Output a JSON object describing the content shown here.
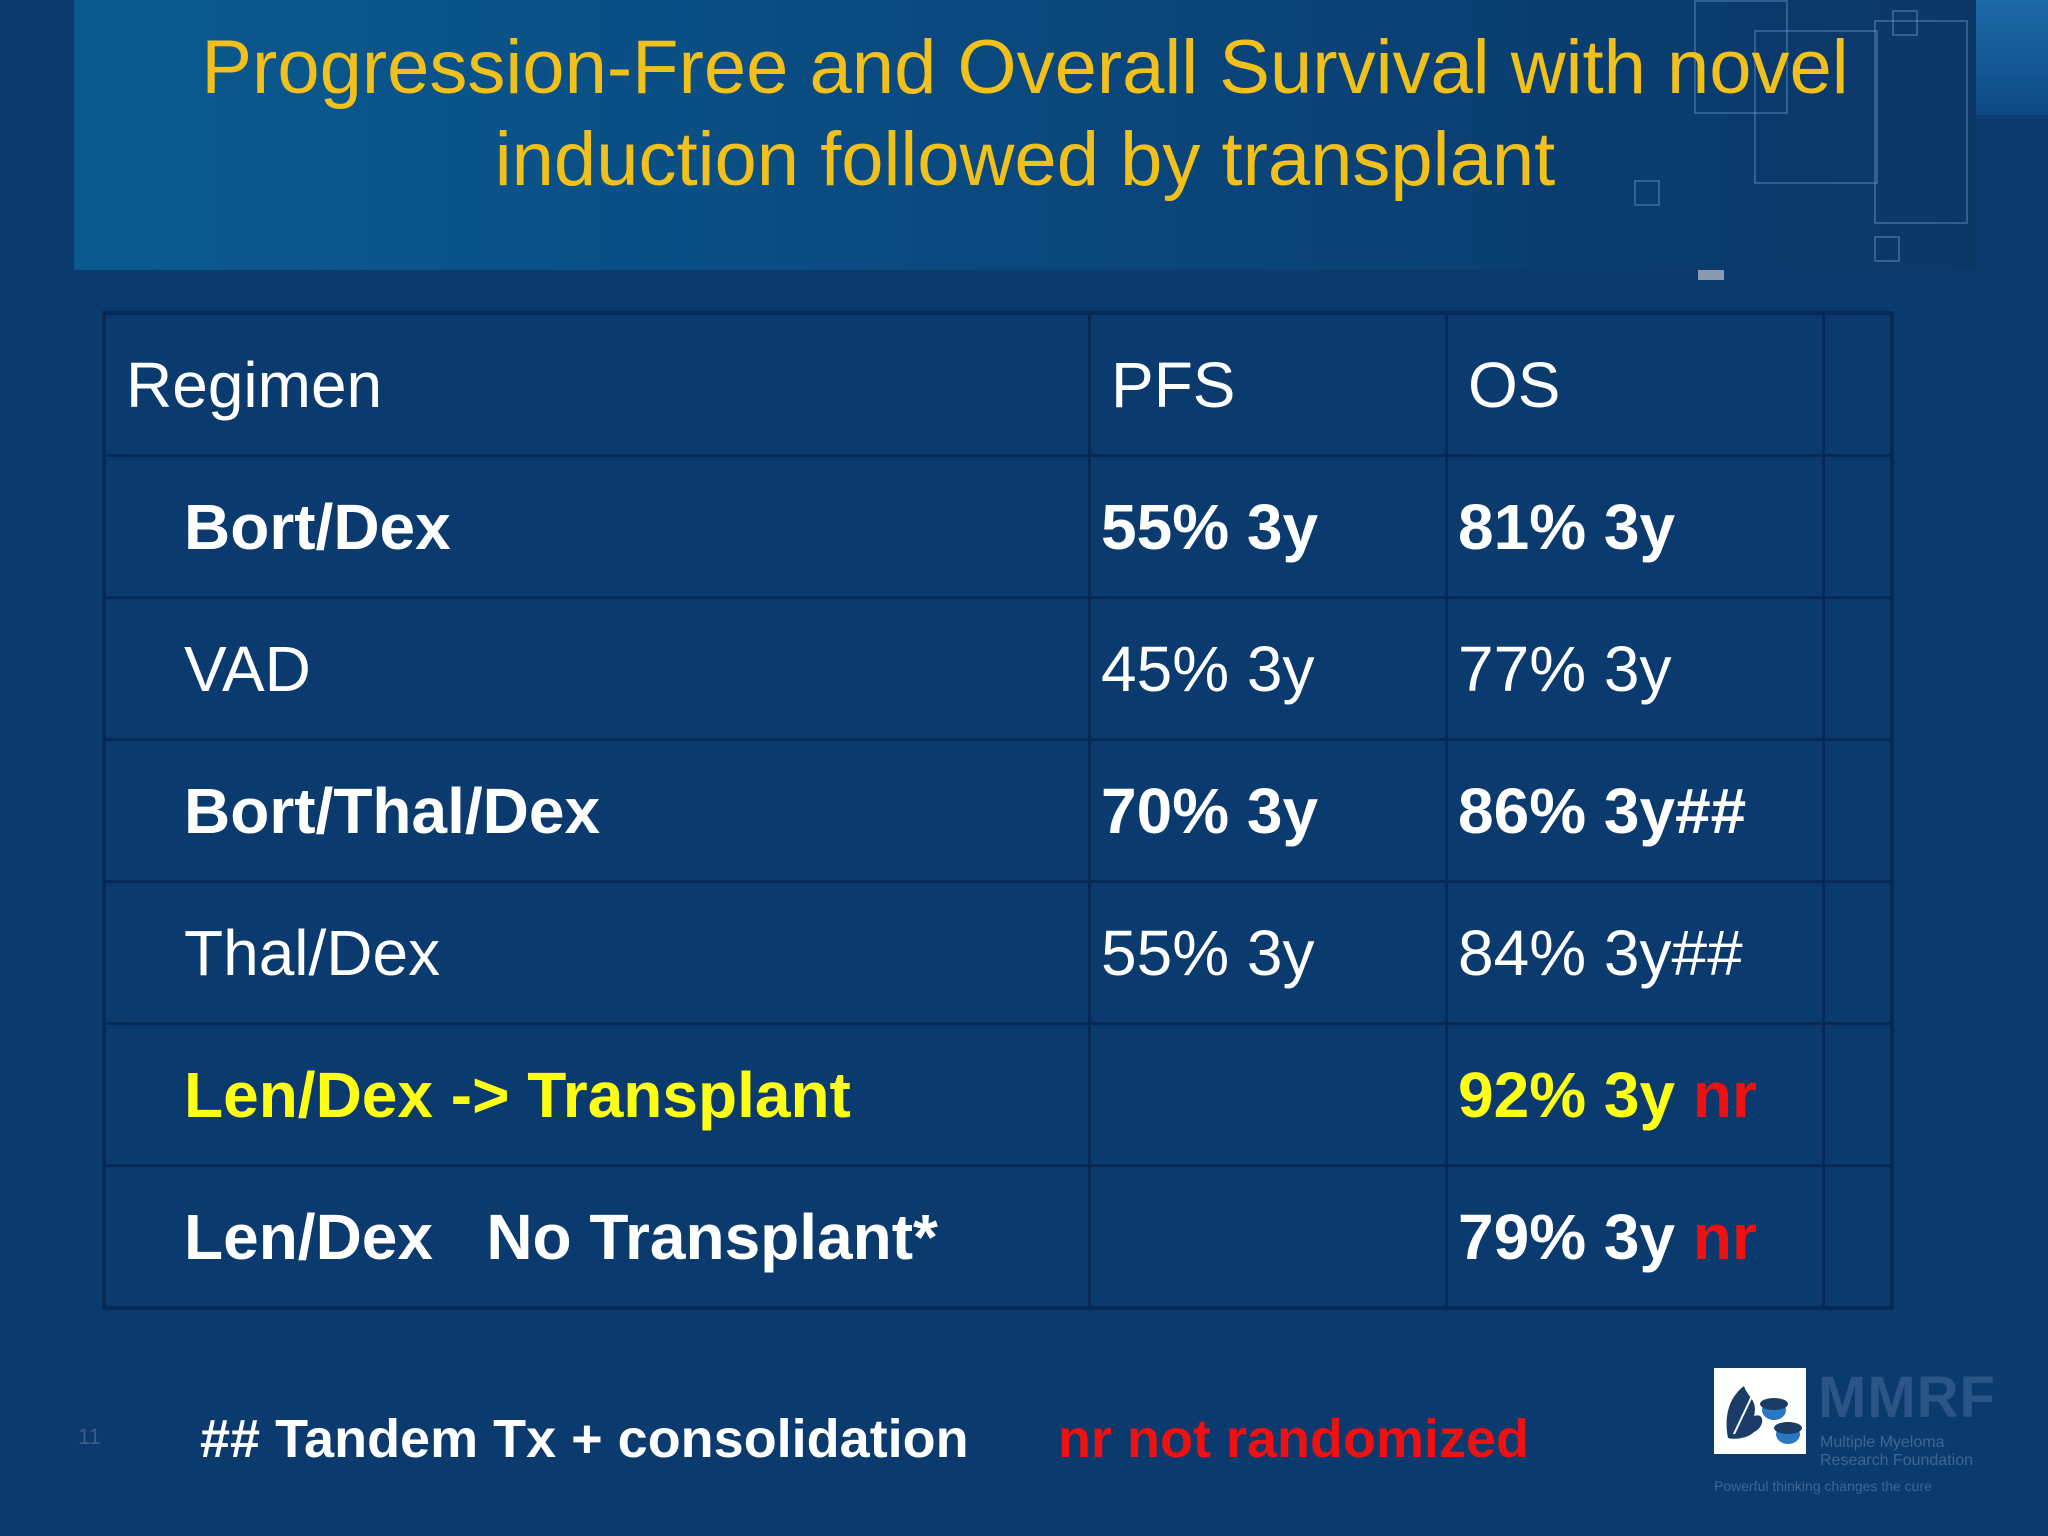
{
  "slide": {
    "title": "Progression-Free and Overall Survival with novel induction followed by transplant",
    "slide_number": "11"
  },
  "table": {
    "headers": [
      "Regimen",
      "PFS",
      "OS"
    ],
    "rows": [
      {
        "regimen": "Bort/Dex",
        "pfs": "55% 3y",
        "os": "81% 3y",
        "os_suffix": ""
      },
      {
        "regimen": "VAD",
        "pfs": "45% 3y",
        "os": "77% 3y",
        "os_suffix": ""
      },
      {
        "regimen": "Bort/Thal/Dex",
        "pfs": "70% 3y",
        "os": "86% 3y##",
        "os_suffix": ""
      },
      {
        "regimen": "Thal/Dex",
        "pfs": "55% 3y",
        "os": "84% 3y##",
        "os_suffix": ""
      },
      {
        "regimen": "Len/Dex -> Transplant",
        "pfs": "",
        "os": "92% 3y",
        "os_suffix": "nr"
      },
      {
        "regimen": "Len/Dex   No Transplant*",
        "pfs": "",
        "os": "79% 3y",
        "os_suffix": "nr"
      }
    ]
  },
  "footnotes": {
    "tandem": "## Tandem Tx + consolidation",
    "not_randomized": "nr not randomized"
  },
  "logo": {
    "name": "MMRF",
    "line1": "Multiple Myeloma",
    "line2": "Research Foundation",
    "tagline": "Powerful thinking changes the cure"
  },
  "colors": {
    "background": "#0a3a6e",
    "title": "#f2c01a",
    "highlight_yellow": "#ffff14",
    "highlight_red": "#ee1111"
  }
}
